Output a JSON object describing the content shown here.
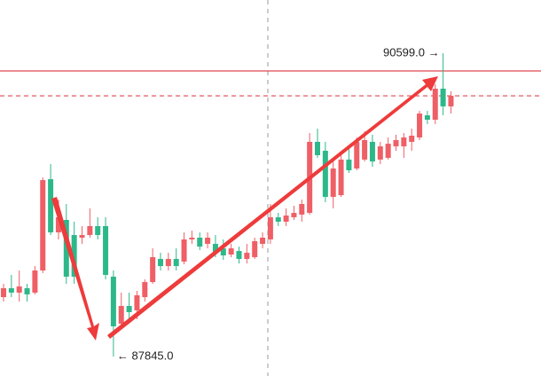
{
  "chart_data": {
    "type": "candlestick",
    "up_color": "#ef5f66",
    "down_color": "#2db88a",
    "ylim": [
      87668,
      91082
    ],
    "open": [
      88384,
      88465,
      88425,
      88465,
      88425,
      88626,
      89455,
      88972,
      89085,
      88948,
      88924,
      88948,
      89029,
      89029,
      88570,
      88143,
      88304,
      88264,
      88384,
      88521,
      88731,
      88666,
      88731,
      88707,
      88908,
      88924,
      88868,
      88868,
      88827,
      88771,
      88803,
      88731,
      88747,
      88868,
      88908,
      89109,
      89069,
      89109,
      89133,
      89149,
      89794,
      89713,
      89294,
      89310,
      89633,
      89552,
      89633,
      89794,
      89633,
      89649,
      89753,
      89753,
      89794,
      89834,
      90035,
      89995,
      90277,
      90116
    ],
    "high": [
      88505,
      88586,
      88626,
      88505,
      88666,
      89471,
      89592,
      89270,
      89230,
      89069,
      89029,
      89190,
      89109,
      89109,
      88626,
      88425,
      88425,
      88441,
      88545,
      88827,
      88787,
      88787,
      88827,
      88972,
      88988,
      88972,
      88972,
      88948,
      88908,
      88868,
      88843,
      88868,
      88924,
      88972,
      89230,
      89149,
      89190,
      89214,
      89270,
      89874,
      89914,
      89794,
      89633,
      89673,
      89753,
      89834,
      89890,
      89858,
      89794,
      89834,
      89858,
      89874,
      89914,
      90075,
      90075,
      90317,
      90599,
      90253
    ],
    "low": [
      88344,
      88384,
      88344,
      88344,
      88409,
      88602,
      88948,
      88908,
      88505,
      88505,
      88868,
      88924,
      88908,
      88545,
      87845,
      88103,
      88143,
      88183,
      88344,
      88505,
      88626,
      88626,
      88626,
      88682,
      88868,
      88811,
      88827,
      88747,
      88723,
      88747,
      88690,
      88690,
      88731,
      88827,
      88868,
      89029,
      89029,
      89085,
      89069,
      89133,
      89649,
      89246,
      89190,
      89294,
      89512,
      89536,
      89616,
      89568,
      89592,
      89633,
      89713,
      89649,
      89713,
      89810,
      89955,
      89955,
      90035,
      90051
    ],
    "close": [
      88465,
      88425,
      88481,
      88409,
      88626,
      89447,
      88972,
      89109,
      88570,
      88570,
      88948,
      89029,
      88948,
      88586,
      88119,
      88304,
      88248,
      88401,
      88521,
      88747,
      88666,
      88731,
      88666,
      88908,
      88924,
      88843,
      88924,
      88787,
      88763,
      88827,
      88731,
      88787,
      88892,
      88924,
      89109,
      89069,
      89125,
      89149,
      89230,
      89794,
      89673,
      89294,
      89552,
      89633,
      89536,
      89794,
      89810,
      89616,
      89753,
      89777,
      89810,
      89834,
      89850,
      90051,
      89995,
      90277,
      90116,
      90212
    ],
    "hlines": [
      {
        "value": 90438,
        "style": "solid"
      },
      {
        "value": 90212,
        "style": "dashed"
      }
    ],
    "annotations": [
      "90599.0 →",
      "← 87845.0"
    ]
  }
}
